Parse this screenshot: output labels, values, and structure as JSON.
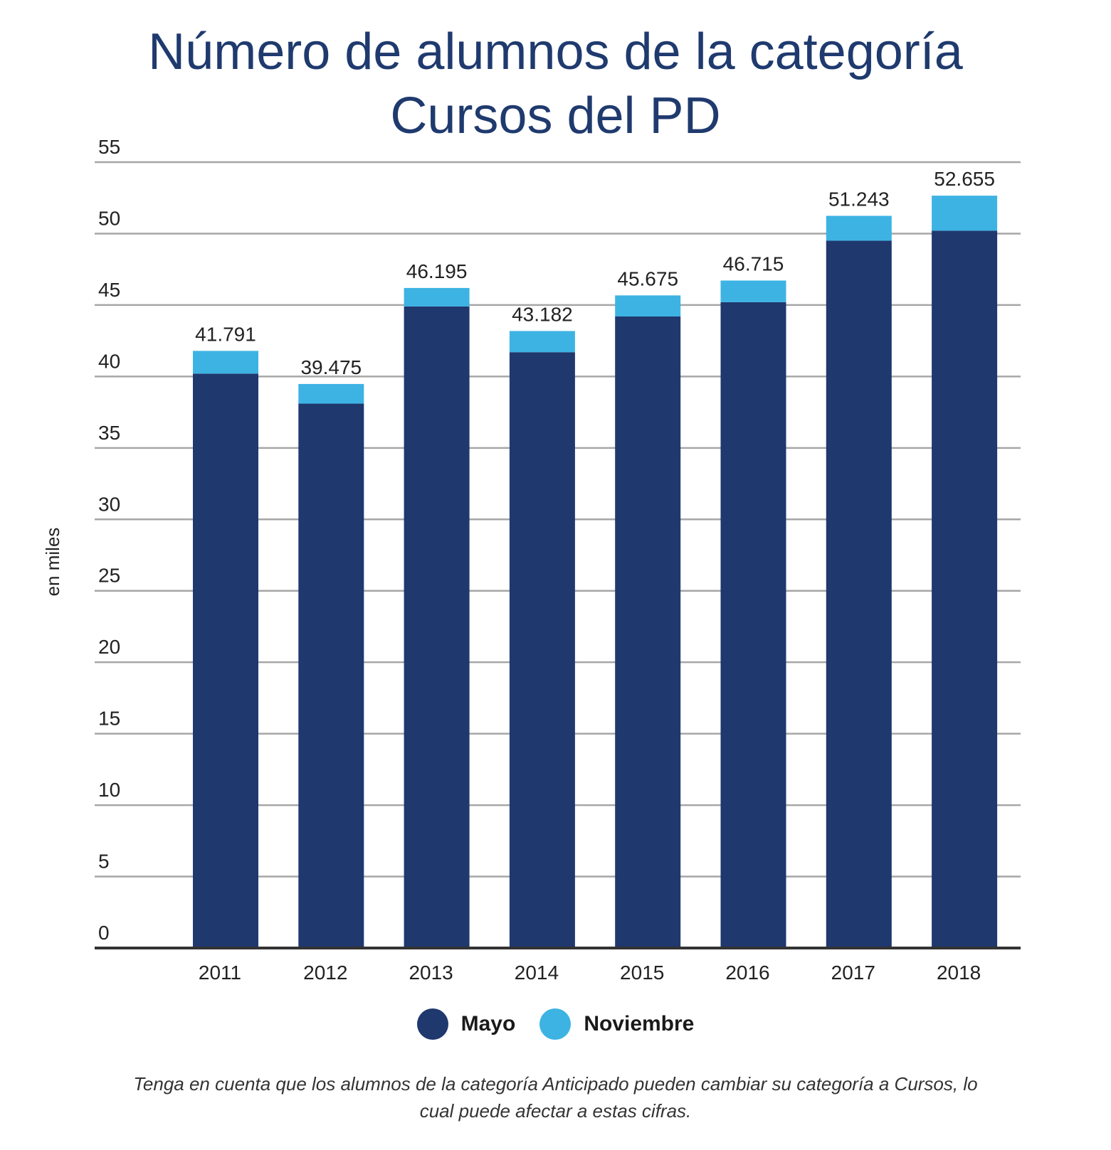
{
  "title_line1": "Número de alumnos de la categoría",
  "title_line2": "Cursos del PD",
  "legend": [
    {
      "label": "Mayo",
      "color": "#1f386e"
    },
    {
      "label": "Noviembre",
      "color": "#3db3e3"
    }
  ],
  "note_line1": "Tenga en cuenta que los alumnos de la categoría Anticipado pueden cambiar su categoría a Cursos, lo",
  "note_line2": "cual puede afectar a estas cifras.",
  "chart_data": {
    "type": "bar",
    "stacked": true,
    "ylabel": "en miles",
    "ylim": [
      0,
      55
    ],
    "yticks": [
      0,
      5,
      10,
      15,
      20,
      25,
      30,
      35,
      40,
      45,
      50,
      55
    ],
    "grid": true,
    "categories": [
      "2011",
      "2012",
      "2013",
      "2014",
      "2015",
      "2016",
      "2017",
      "2018"
    ],
    "series": [
      {
        "name": "Mayo",
        "color": "#1f386e",
        "values": [
          40.2,
          38.1,
          44.9,
          41.7,
          44.2,
          45.2,
          49.5,
          50.2
        ]
      },
      {
        "name": "Noviembre",
        "color": "#3db3e3",
        "values": [
          1.591,
          1.375,
          1.295,
          1.482,
          1.475,
          1.515,
          1.743,
          2.455
        ]
      }
    ],
    "totals": [
      41.791,
      39.475,
      46.195,
      43.182,
      45.675,
      46.715,
      51.243,
      52.655
    ],
    "total_labels": [
      "41.791",
      "39.475",
      "46.195",
      "43.182",
      "45.675",
      "46.715",
      "51.243",
      "52.655"
    ]
  }
}
